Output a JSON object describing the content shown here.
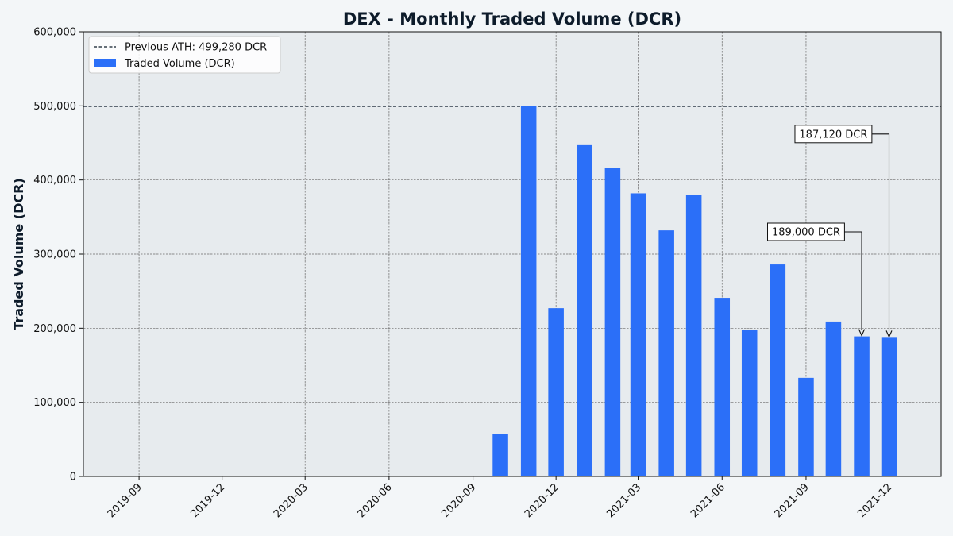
{
  "chart_data": {
    "type": "bar",
    "title": "DEX - Monthly Traded Volume (DCR)",
    "xlabel": "",
    "ylabel": "Traded Volume (DCR)",
    "ylim": [
      0,
      600000
    ],
    "yticks": [
      0,
      100000,
      200000,
      300000,
      400000,
      500000,
      600000
    ],
    "ytick_labels": [
      "0",
      "100,000",
      "200,000",
      "300,000",
      "400,000",
      "500,000",
      "600,000"
    ],
    "xlim": [
      "2019-07-02",
      "2022-01-27"
    ],
    "xticks": [
      "2019-09-01",
      "2019-12-01",
      "2020-03-01",
      "2020-06-01",
      "2020-09-01",
      "2020-12-01",
      "2021-03-01",
      "2021-06-01",
      "2021-09-01",
      "2021-12-01"
    ],
    "xtick_labels": [
      "2019-09",
      "2019-12",
      "2020-03",
      "2020-06",
      "2020-09",
      "2020-12",
      "2021-03",
      "2021-06",
      "2021-09",
      "2021-12"
    ],
    "grid": true,
    "legend_position": "top-left",
    "series": [
      {
        "name": "Traded Volume (DCR)",
        "color": "#2b6ff8",
        "x": [
          "2020-10-01",
          "2020-11-01",
          "2020-12-01",
          "2021-01-01",
          "2021-02-01",
          "2021-03-01",
          "2021-04-01",
          "2021-05-01",
          "2021-06-01",
          "2021-07-01",
          "2021-08-01",
          "2021-09-01",
          "2021-10-01",
          "2021-11-01",
          "2021-12-01"
        ],
        "values": [
          57000,
          499280,
          227000,
          448000,
          416000,
          382000,
          332000,
          380000,
          241000,
          198000,
          286000,
          133000,
          209000,
          189000,
          187120
        ]
      }
    ],
    "reference_line": {
      "name": "Previous ATH: 499,280 DCR",
      "value": 499280,
      "style": "dashed",
      "color": "#0d1b2a"
    },
    "annotations": [
      {
        "text": "189,000 DCR",
        "x": "2021-11-01",
        "y": 189000,
        "text_x": "2021-09-01",
        "text_y": 330000
      },
      {
        "text": "187,120 DCR",
        "x": "2021-12-01",
        "y": 187120,
        "text_x": "2021-10-01",
        "text_y": 462000
      }
    ]
  }
}
